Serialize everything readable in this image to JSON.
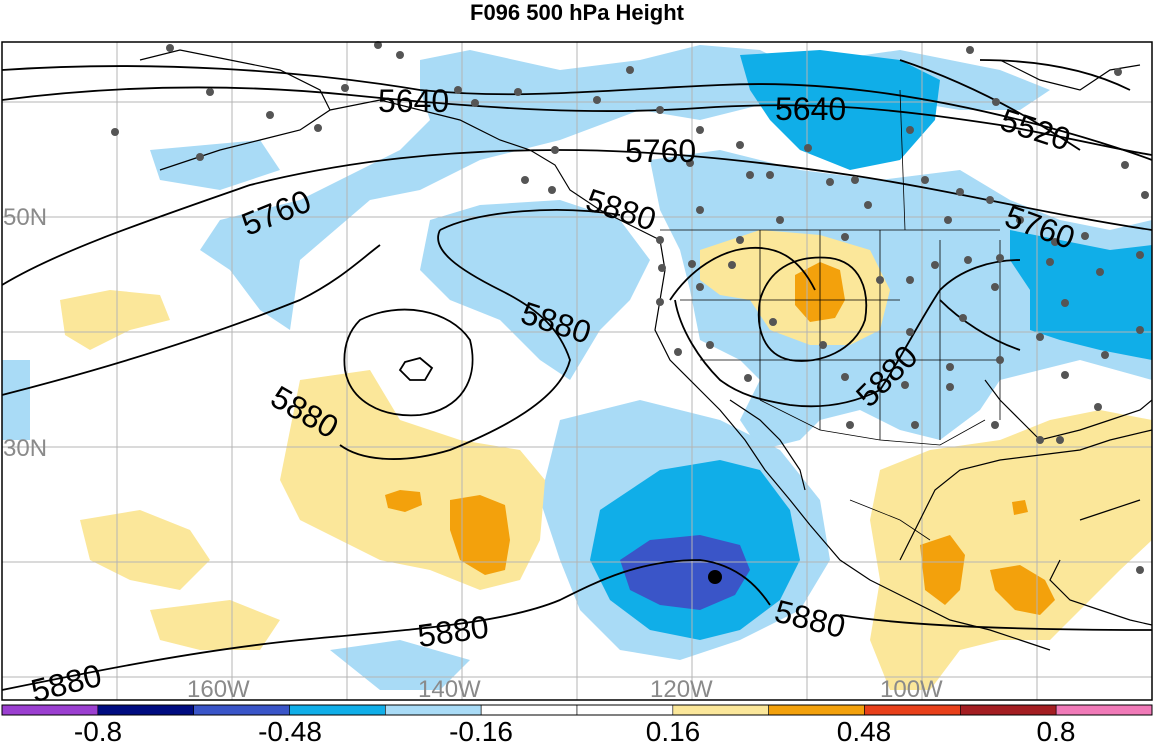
{
  "title": "F096 500 hPa Height",
  "contours": {
    "labels": [
      "5640",
      "5640",
      "5520",
      "5760",
      "5760",
      "5760",
      "5880",
      "5880",
      "5880",
      "5880",
      "5880",
      "5880",
      "5880"
    ]
  },
  "gridlines": {
    "lat_labels": [
      "50N",
      "30N"
    ],
    "lon_labels": [
      "160W",
      "140W",
      "120W",
      "100W"
    ]
  },
  "colorbar": {
    "ticks": [
      "-0.8",
      "-0.48",
      "-0.16",
      "0.16",
      "0.48",
      "0.8"
    ],
    "colors": [
      "#9b3fd0",
      "#000c80",
      "#3a55c8",
      "#10aee8",
      "#a9dbf6",
      "#ffffff",
      "#ffffff",
      "#fbe79a",
      "#f3a10c",
      "#e8401a",
      "#a41e22",
      "#f07ab8"
    ]
  },
  "shading": {
    "negative_light": "#a9dbf6",
    "negative_mid": "#10aee8",
    "negative_dark": "#3a55c8",
    "positive_light": "#fbe79a",
    "positive_mid": "#f3a10c"
  }
}
